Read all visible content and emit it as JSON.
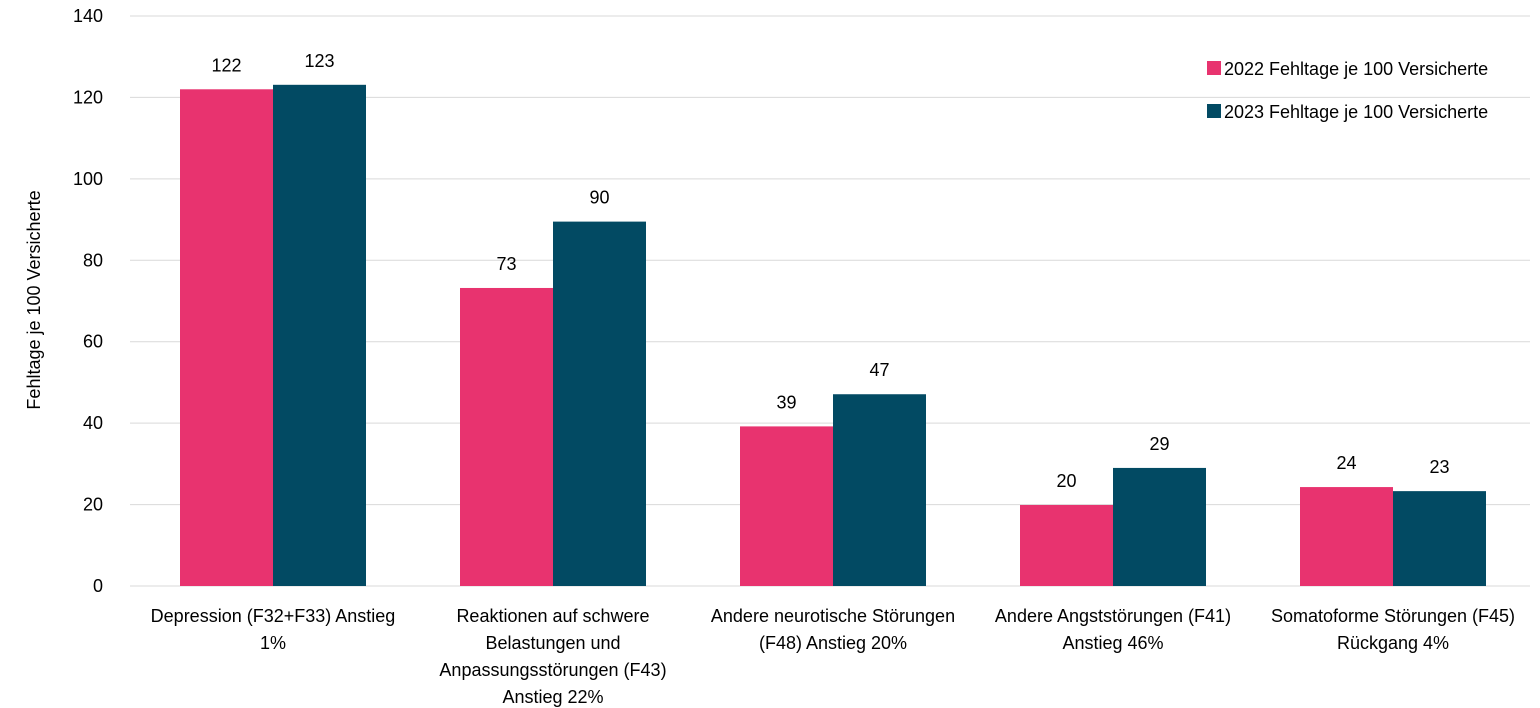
{
  "chart_data": {
    "type": "bar",
    "categories": [
      [
        "Depression (F32+F33) Anstieg",
        "1%"
      ],
      [
        "Reaktionen auf schwere",
        "Belastungen und",
        "Anpassungsstörungen (F43)",
        "Anstieg 22%"
      ],
      [
        "Andere neurotische Störungen",
        "(F48) Anstieg 20%"
      ],
      [
        "Andere Angststörungen (F41)",
        "Anstieg 46%"
      ],
      [
        "Somatoforme Störungen (F45)",
        "Rückgang 4%"
      ]
    ],
    "series": [
      {
        "name": "2022 Fehltage je 100 Versicherte",
        "color": "#e8336f",
        "values": [
          122,
          73.2,
          39.2,
          19.9,
          24.3
        ],
        "labels": [
          "122",
          "73",
          "39",
          "20",
          "24"
        ]
      },
      {
        "name": "2023 Fehltage je 100 Versicherte",
        "color": "#024a63",
        "values": [
          123.1,
          89.5,
          47.1,
          29,
          23.3
        ],
        "labels": [
          "123",
          "90",
          "47",
          "29",
          "23"
        ]
      }
    ],
    "ylabel": "Fehltage je 100 Versicherte",
    "xlabel": "",
    "ylim": [
      0,
      140
    ],
    "yticks": [
      0,
      20,
      40,
      60,
      80,
      100,
      120,
      140
    ],
    "grid": true,
    "legend_position": "top-right"
  }
}
